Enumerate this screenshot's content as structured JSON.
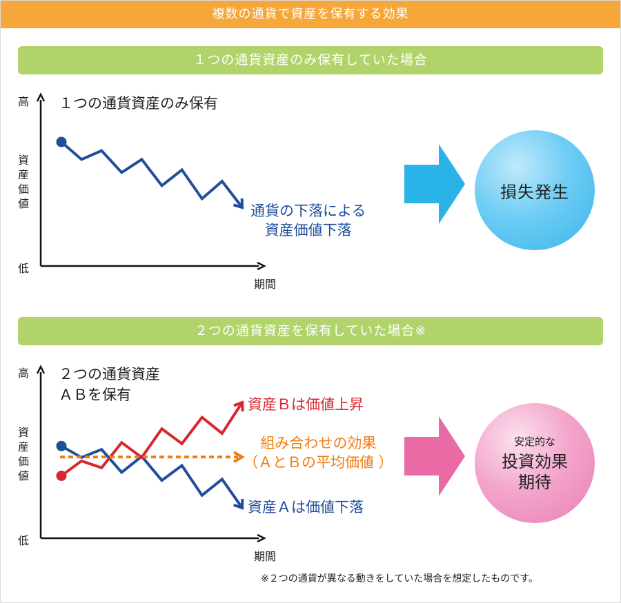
{
  "header": {
    "title": "複数の通貨で資産を保有する効果"
  },
  "colors": {
    "header": "#f6a73a",
    "section_bar": "#b1d46a",
    "line_a": "#1f4e9b",
    "line_b": "#d7262d",
    "average": "#ef7d0f",
    "arrow_blue": "#2ab3e8",
    "arrow_pink": "#ea6aa6"
  },
  "section1": {
    "bar_label": "１つの通貨資産のみ保有していた場合",
    "chart_title": "１つの通貨資産のみ保有",
    "y_high": "高",
    "y_label": [
      "資",
      "産",
      "価",
      "値"
    ],
    "y_low": "低",
    "x_label": "期間",
    "line_label": [
      "通貨の下落による",
      "資産価値下落"
    ],
    "result": "損失発生"
  },
  "section2": {
    "bar_label": "２つの通貨資産を保有していた場合※",
    "chart_title": [
      "２つの通貨資産",
      "ＡＢを保有"
    ],
    "y_high": "高",
    "y_label": [
      "資",
      "産",
      "価",
      "値"
    ],
    "y_low": "低",
    "x_label": "期間",
    "label_b": "資産Ｂは価値上昇",
    "label_combo": [
      "組み合わせの効果",
      "（ＡとＢの平均価値 ）"
    ],
    "label_a": "資産Ａは価値下落",
    "result_small": "安定的な",
    "result_big": [
      "投資効果",
      "期待"
    ]
  },
  "footnote": "※２つの通貨が異なる動きをしていた場合を想定したものです。",
  "chart_data": [
    {
      "type": "line",
      "title": "１つの通貨資産のみ保有",
      "series": [
        {
          "values": [
            8,
            6,
            7,
            4.5,
            6,
            3,
            4.8,
            1.5,
            3.5,
            0.5
          ]
        }
      ],
      "xlabel": "期間",
      "ylabel": "資産価値"
    },
    {
      "type": "line",
      "title": "２つの通貨資産 ＡＢを保有",
      "series": [
        {
          "name": "資産Ａは価値下落",
          "values": [
            5.4,
            4.4,
            5.1,
            3.1,
            4.5,
            2.4,
            3.7,
            1.1,
            2.5,
            0
          ]
        },
        {
          "name": "資産Ｂは価値上昇",
          "values": [
            2.8,
            4.1,
            3.5,
            5.7,
            4.4,
            6.9,
            5.6,
            7.9,
            6.5,
            9.2
          ]
        },
        {
          "name": "組み合わせの効果",
          "values": [
            4.1,
            4.25,
            4.3,
            4.4,
            4.45,
            4.65,
            4.65,
            4.5,
            4.5,
            4.6
          ]
        }
      ],
      "xlabel": "期間",
      "ylabel": "資産価値"
    }
  ]
}
